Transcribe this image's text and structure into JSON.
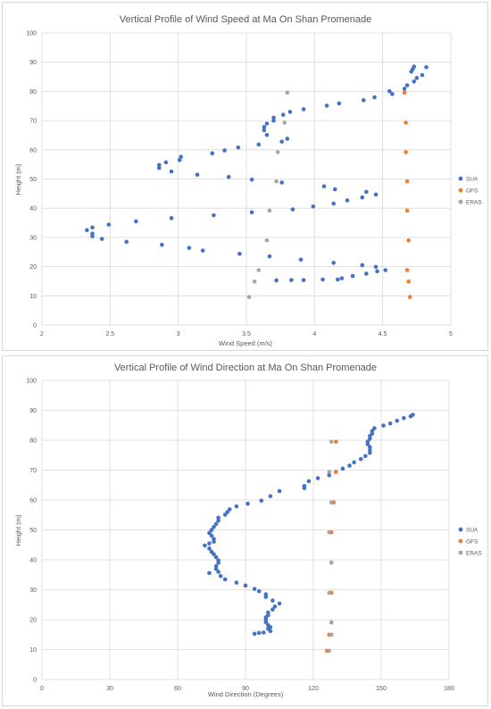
{
  "colors": {
    "SUA": "#4472c4",
    "GFS": "#ed7d31",
    "ERAS": "#a5a5a5",
    "grid": "#d9d9d9",
    "text": "#595959"
  },
  "chart_data": [
    {
      "type": "scatter",
      "title": "Vertical Profile of Wind Speed at Ma On Shan Promenade",
      "xlabel": "Wind Speed (m/s)",
      "ylabel": "Height (m)",
      "xlim": [
        2,
        5
      ],
      "ylim": [
        0,
        100
      ],
      "xticks": [
        "2",
        "2.5",
        "3",
        "3.5",
        "4",
        "4.5",
        "5"
      ],
      "yticks": [
        "0",
        "10",
        "20",
        "30",
        "40",
        "50",
        "60",
        "70",
        "80",
        "90",
        "100"
      ],
      "grid": true,
      "legend_position": "right",
      "series": [
        {
          "name": "SUA",
          "points": [
            [
              4.82,
              88.3
            ],
            [
              4.73,
              88.5
            ],
            [
              4.72,
              87.6
            ],
            [
              4.71,
              86.8
            ],
            [
              4.79,
              85.6
            ],
            [
              4.75,
              84.6
            ],
            [
              4.73,
              83.4
            ],
            [
              4.68,
              82.1
            ],
            [
              4.66,
              80.9
            ],
            [
              4.55,
              80.1
            ],
            [
              4.57,
              79.1
            ],
            [
              4.44,
              78.0
            ],
            [
              4.36,
              77.0
            ],
            [
              4.18,
              75.9
            ],
            [
              4.09,
              75.1
            ],
            [
              3.92,
              73.9
            ],
            [
              3.82,
              73.0
            ],
            [
              3.77,
              72.0
            ],
            [
              3.7,
              71.0
            ],
            [
              3.7,
              70.0
            ],
            [
              3.65,
              69.0
            ],
            [
              3.63,
              67.8
            ],
            [
              3.63,
              66.7
            ],
            [
              3.65,
              65.1
            ],
            [
              3.8,
              63.8
            ],
            [
              3.76,
              62.8
            ],
            [
              3.59,
              61.8
            ],
            [
              3.44,
              60.8
            ],
            [
              3.34,
              59.8
            ],
            [
              3.25,
              58.8
            ],
            [
              3.02,
              57.6
            ],
            [
              3.01,
              56.5
            ],
            [
              2.91,
              55.7
            ],
            [
              2.86,
              54.8
            ],
            [
              2.86,
              53.8
            ],
            [
              2.95,
              52.6
            ],
            [
              3.14,
              51.5
            ],
            [
              3.37,
              50.7
            ],
            [
              3.54,
              49.8
            ],
            [
              3.76,
              48.8
            ],
            [
              4.07,
              47.5
            ],
            [
              4.15,
              46.5
            ],
            [
              4.38,
              45.6
            ],
            [
              4.45,
              44.7
            ],
            [
              4.35,
              43.7
            ],
            [
              4.24,
              42.7
            ],
            [
              4.14,
              41.6
            ],
            [
              3.99,
              40.6
            ],
            [
              3.84,
              39.6
            ],
            [
              3.54,
              38.6
            ],
            [
              3.26,
              37.6
            ],
            [
              2.95,
              36.6
            ],
            [
              2.69,
              35.5
            ],
            [
              2.49,
              34.4
            ],
            [
              2.37,
              33.4
            ],
            [
              2.33,
              32.5
            ],
            [
              2.37,
              31.3
            ],
            [
              2.37,
              30.4
            ],
            [
              2.44,
              29.5
            ],
            [
              2.62,
              28.5
            ],
            [
              2.88,
              27.5
            ],
            [
              3.08,
              26.4
            ],
            [
              3.18,
              25.5
            ],
            [
              3.45,
              24.4
            ],
            [
              3.67,
              23.5
            ],
            [
              3.9,
              22.4
            ],
            [
              4.14,
              21.3
            ],
            [
              4.35,
              20.5
            ],
            [
              4.45,
              19.9
            ],
            [
              4.52,
              18.8
            ],
            [
              4.46,
              18.4
            ],
            [
              4.38,
              17.6
            ],
            [
              4.28,
              16.8
            ],
            [
              4.2,
              16.0
            ],
            [
              4.17,
              15.6
            ],
            [
              4.06,
              15.6
            ],
            [
              3.92,
              15.4
            ],
            [
              3.83,
              15.4
            ],
            [
              3.72,
              15.3
            ]
          ]
        },
        {
          "name": "GFS",
          "points": [
            [
              4.66,
              79.6
            ],
            [
              4.67,
              69.3
            ],
            [
              4.67,
              59.2
            ],
            [
              4.68,
              49.2
            ],
            [
              4.68,
              39.2
            ],
            [
              4.69,
              29.0
            ],
            [
              4.68,
              18.8
            ],
            [
              4.69,
              14.9
            ],
            [
              4.7,
              9.6
            ]
          ]
        },
        {
          "name": "ERAS",
          "points": [
            [
              3.8,
              79.6
            ],
            [
              3.78,
              69.3
            ],
            [
              3.73,
              59.2
            ],
            [
              3.72,
              49.2
            ],
            [
              3.67,
              39.2
            ],
            [
              3.65,
              29.0
            ],
            [
              3.59,
              18.8
            ],
            [
              3.56,
              14.9
            ],
            [
              3.52,
              9.6
            ]
          ]
        }
      ]
    },
    {
      "type": "scatter",
      "title": "Vertical Profile of Wind Direction at Ma On Shan Promenade",
      "xlabel": "Wind Direction (Degrees)",
      "ylabel": "Height (m)",
      "xlim": [
        0,
        180
      ],
      "ylim": [
        0,
        100
      ],
      "xticks": [
        "0",
        "30",
        "60",
        "90",
        "120",
        "150",
        "180"
      ],
      "yticks": [
        "0",
        "10",
        "20",
        "30",
        "40",
        "50",
        "60",
        "70",
        "80",
        "90",
        "100"
      ],
      "grid": true,
      "legend_position": "right",
      "series": [
        {
          "name": "SUA",
          "points": [
            [
              164,
              88.5
            ],
            [
              163,
              88.0
            ],
            [
              160,
              87.4
            ],
            [
              157,
              86.5
            ],
            [
              154,
              85.6
            ],
            [
              151,
              84.9
            ],
            [
              147,
              84.0
            ],
            [
              146,
              83.1
            ],
            [
              146,
              82.2
            ],
            [
              145,
              81.4
            ],
            [
              145,
              80.5
            ],
            [
              144,
              79.5
            ],
            [
              144,
              78.7
            ],
            [
              145,
              77.7
            ],
            [
              145,
              76.7
            ],
            [
              145,
              75.8
            ],
            [
              143,
              74.7
            ],
            [
              141,
              73.7
            ],
            [
              138,
              72.6
            ],
            [
              136,
              71.5
            ],
            [
              133,
              70.5
            ],
            [
              130,
              69.4
            ],
            [
              127,
              68.3
            ],
            [
              122,
              67.3
            ],
            [
              118,
              66.3
            ],
            [
              116,
              64.7
            ],
            [
              116,
              64.0
            ],
            [
              105,
              63.0
            ],
            [
              101,
              61.3
            ],
            [
              97,
              59.8
            ],
            [
              91,
              58.8
            ],
            [
              86,
              57.9
            ],
            [
              83,
              56.9
            ],
            [
              82,
              56.0
            ],
            [
              81,
              55.1
            ],
            [
              78,
              54.1
            ],
            [
              78,
              53.1
            ],
            [
              77,
              52.0
            ],
            [
              76,
              51.0
            ],
            [
              75,
              50.0
            ],
            [
              74,
              49.0
            ],
            [
              75,
              48.1
            ],
            [
              76,
              47.0
            ],
            [
              76,
              46.1
            ],
            [
              74,
              45.5
            ],
            [
              72,
              44.8
            ],
            [
              74,
              43.8
            ],
            [
              75,
              42.7
            ],
            [
              76,
              41.9
            ],
            [
              77,
              40.9
            ],
            [
              78,
              39.8
            ],
            [
              78,
              39.0
            ],
            [
              77,
              37.9
            ],
            [
              77,
              37.0
            ],
            [
              78,
              36.0
            ],
            [
              74,
              35.6
            ],
            [
              79,
              34.6
            ],
            [
              81,
              33.5
            ],
            [
              86,
              32.4
            ],
            [
              90,
              31.4
            ],
            [
              94,
              30.3
            ],
            [
              96,
              29.5
            ],
            [
              99,
              28.5
            ],
            [
              99,
              27.6
            ],
            [
              102,
              26.4
            ],
            [
              105,
              25.4
            ],
            [
              103,
              24.4
            ],
            [
              102,
              23.4
            ],
            [
              100,
              22.4
            ],
            [
              100,
              21.5
            ],
            [
              99,
              20.8
            ],
            [
              99,
              20.1
            ],
            [
              99,
              19.2
            ],
            [
              100,
              18.2
            ],
            [
              101,
              17.5
            ],
            [
              100,
              17.0
            ],
            [
              101,
              16.2
            ],
            [
              98,
              15.7
            ],
            [
              96,
              15.6
            ],
            [
              94,
              15.3
            ]
          ]
        },
        {
          "name": "GFS",
          "points": [
            [
              130,
              79.5
            ],
            [
              130,
              69.4
            ],
            [
              129,
              59.2
            ],
            [
              128,
              49.2
            ],
            [
              128,
              39.1
            ],
            [
              128,
              29.0
            ],
            [
              128,
              19.1
            ],
            [
              127,
              15.0
            ],
            [
              126,
              9.6
            ]
          ]
        },
        {
          "name": "ERAS",
          "points": [
            [
              128,
              79.5
            ],
            [
              127,
              69.4
            ],
            [
              128,
              59.2
            ],
            [
              127,
              49.2
            ],
            [
              128,
              39.1
            ],
            [
              127,
              29.0
            ],
            [
              128,
              19.1
            ],
            [
              128,
              15.0
            ],
            [
              127,
              9.6
            ]
          ]
        }
      ]
    }
  ]
}
